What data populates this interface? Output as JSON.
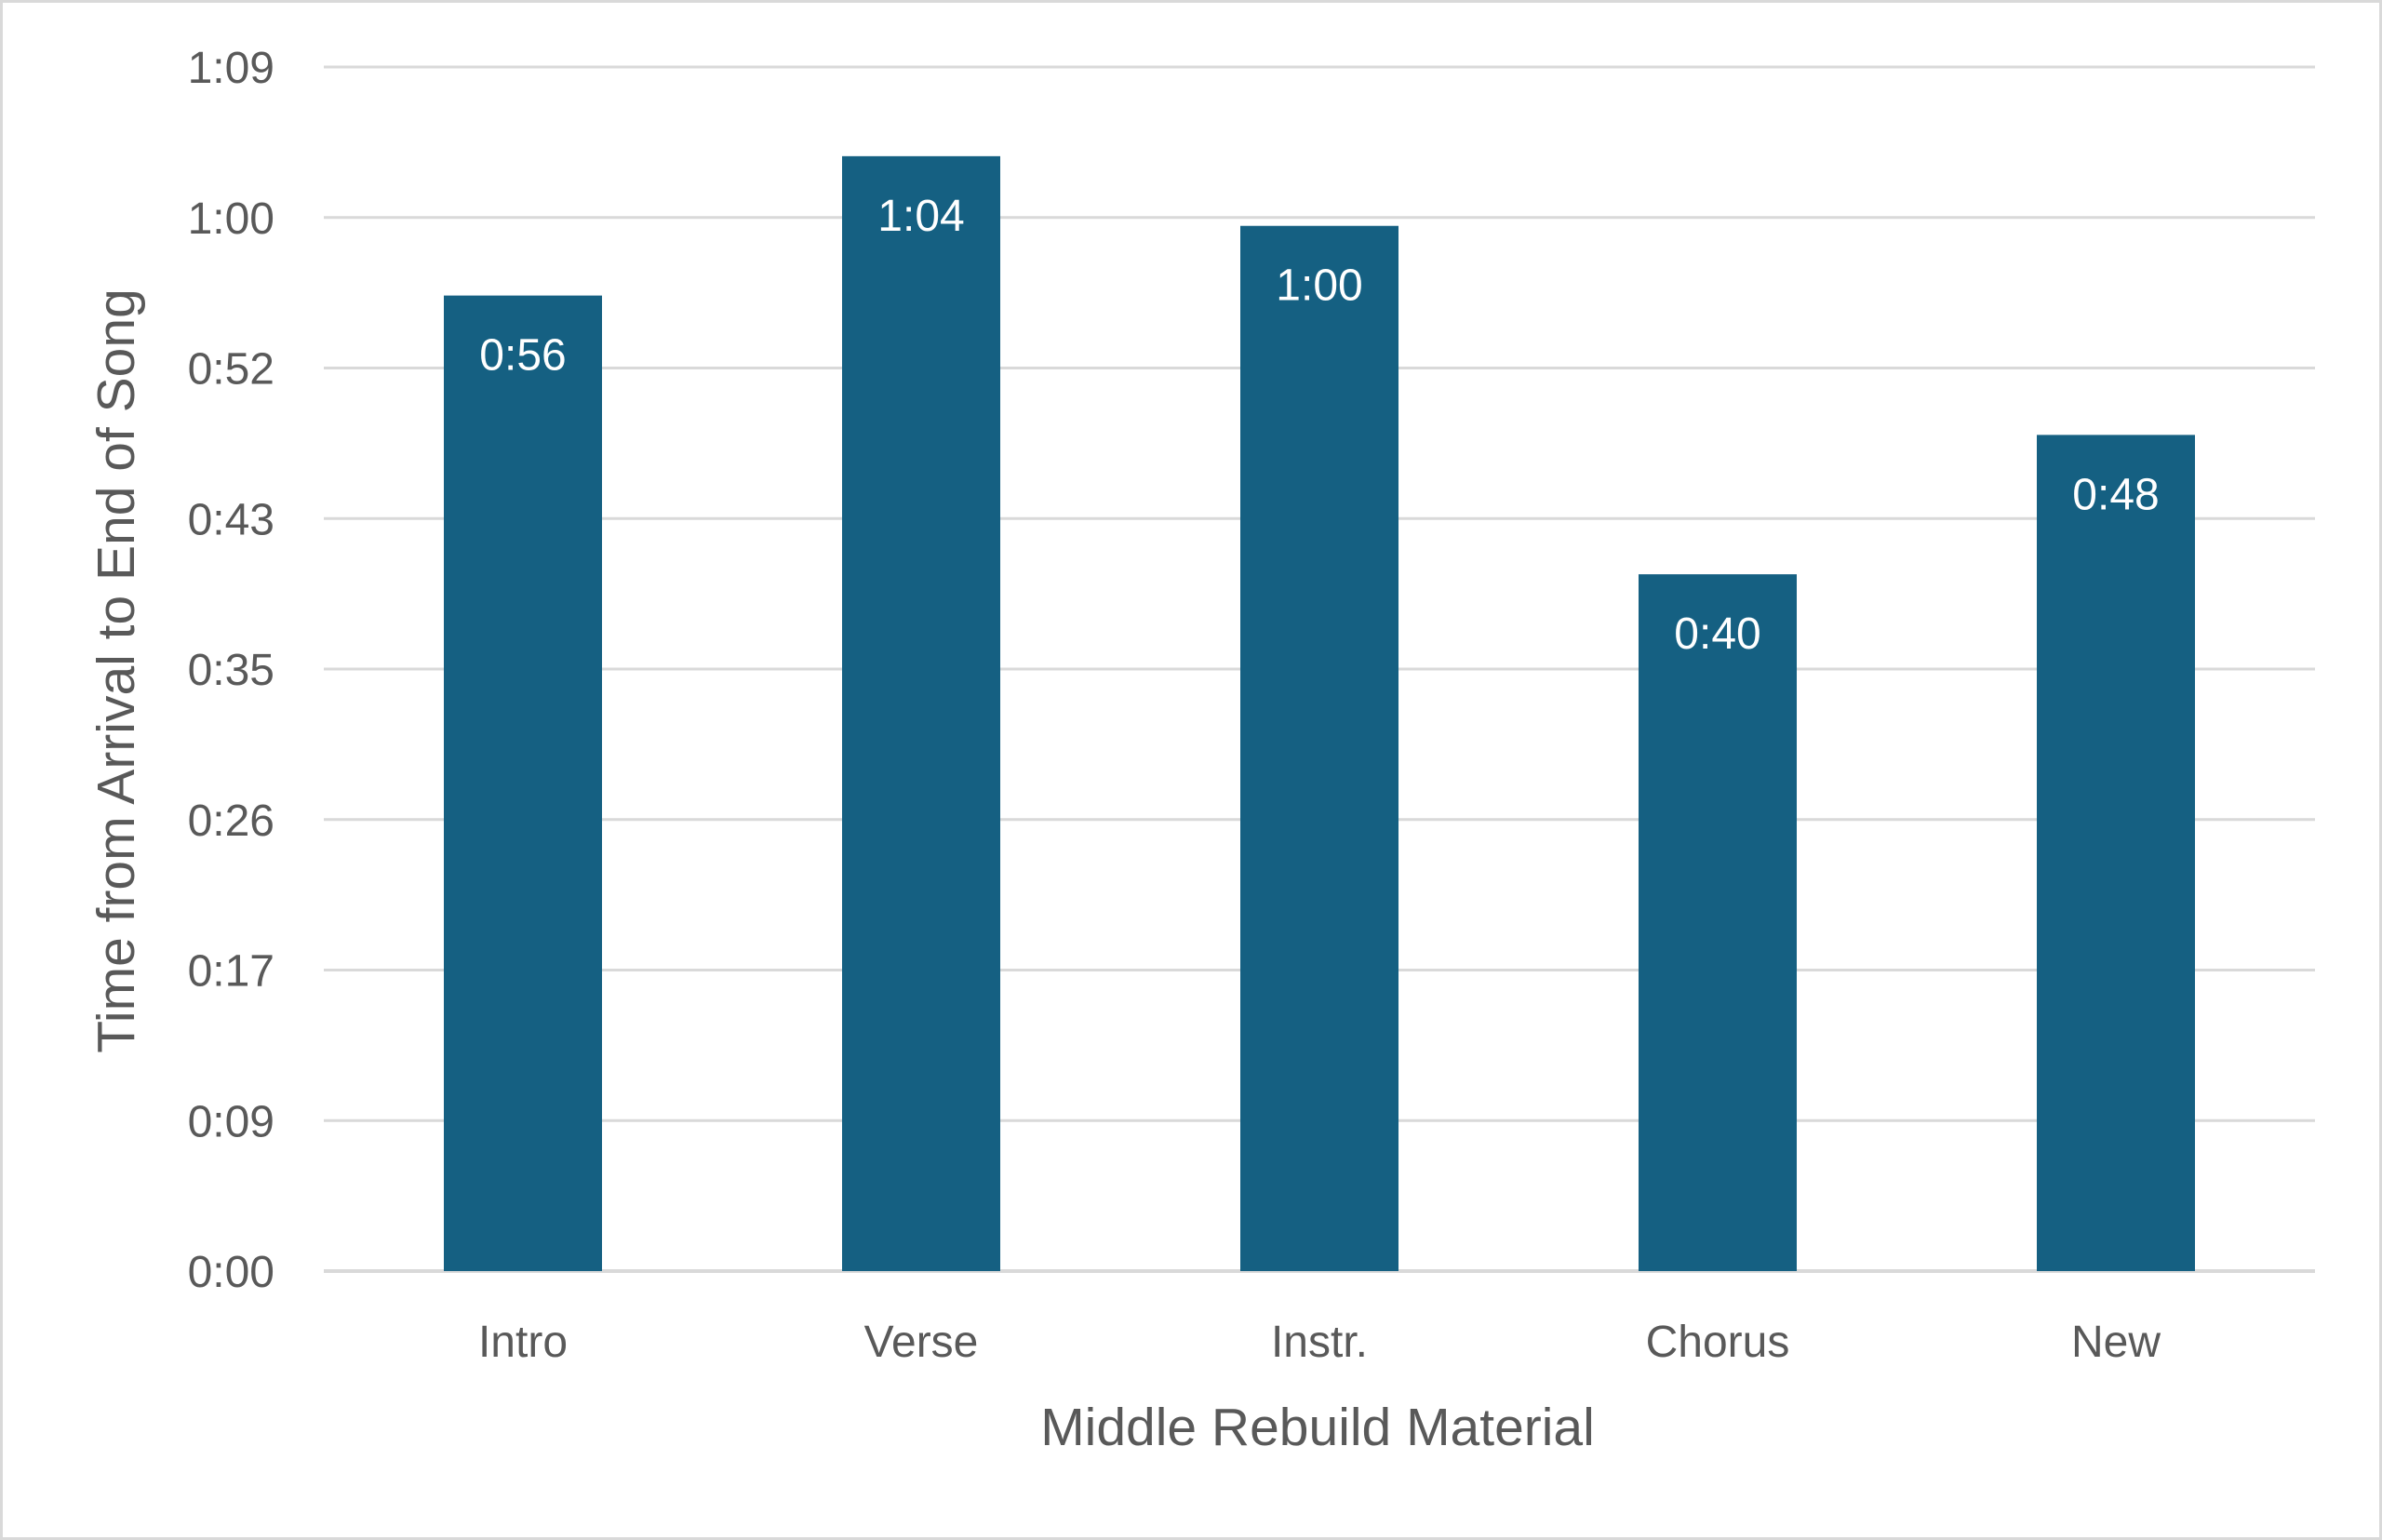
{
  "chart_data": {
    "type": "bar",
    "categories": [
      "Intro",
      "Verse",
      "Instr.",
      "Chorus",
      "New"
    ],
    "values": [
      56,
      64,
      60,
      40,
      48
    ],
    "data_labels": [
      "0:56",
      "1:04",
      "1:00",
      "0:40",
      "0:48"
    ],
    "title": "",
    "xlabel": "Middle Rebuild Material",
    "ylabel": "Time from Arrival to End of Song",
    "ylim": [
      0,
      69.1
    ],
    "y_ticks": [
      0,
      8.64,
      17.28,
      25.92,
      34.56,
      43.2,
      51.84,
      60.48,
      69.12
    ],
    "y_tick_labels": [
      "0:00",
      "0:09",
      "0:17",
      "0:26",
      "0:35",
      "0:43",
      "0:52",
      "1:00",
      "1:09"
    ],
    "grid": true,
    "legend": "none",
    "colors": {
      "bar": "#156082",
      "grid": "#d9d9d9",
      "text": "#595959",
      "data_label": "#ffffff"
    }
  }
}
